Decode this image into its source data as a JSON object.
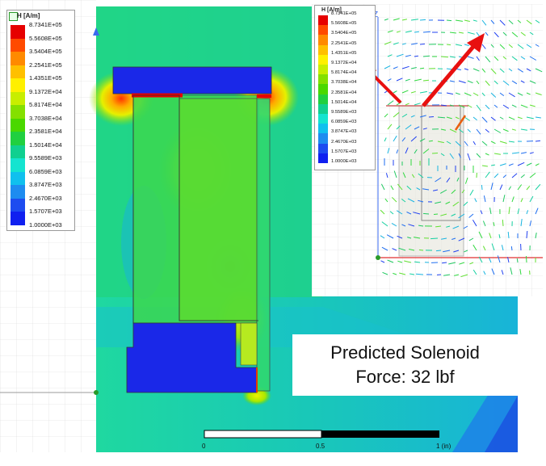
{
  "legend": {
    "title": "H [A/m]",
    "colors": [
      "#e60000",
      "#ff4a00",
      "#ff8a00",
      "#ffc000",
      "#fff000",
      "#c8ee00",
      "#84e000",
      "#4ad800",
      "#20d040",
      "#10d090",
      "#14e4d0",
      "#10c0ee",
      "#1e8cf0",
      "#1d4cf0",
      "#1020f0"
    ],
    "values": [
      "8.7341E+05",
      "5.5608E+05",
      "3.5404E+05",
      "2.2541E+05",
      "1.4351E+05",
      "9.1372E+04",
      "5.8174E+04",
      "3.7038E+04",
      "2.3581E+04",
      "1.5014E+04",
      "9.5589E+03",
      "6.0859E+03",
      "3.8747E+03",
      "2.4670E+03",
      "1.5707E+03",
      "1.0000E+03"
    ]
  },
  "inset_legend": {
    "title": "H [A/m]"
  },
  "inset": {
    "axis_label": "Z"
  },
  "caption": {
    "line1": "Predicted Solenoid",
    "line2": "Force: 32 lbf"
  },
  "scale_bar": {
    "labels": [
      "0",
      "0.5",
      "1 (in)"
    ]
  }
}
